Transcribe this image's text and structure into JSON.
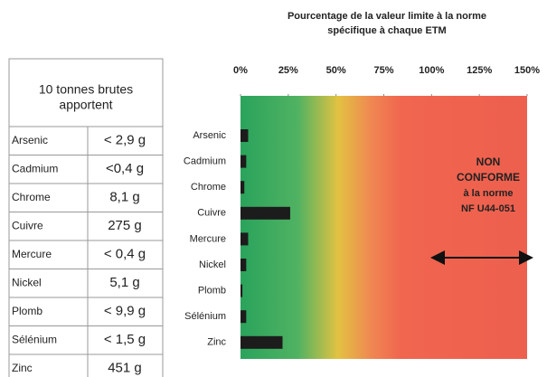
{
  "chart_data": {
    "type": "bar",
    "orientation": "horizontal",
    "title": [
      "Pourcentage de la valeur limite à la norme",
      "spécifique à chaque ETM"
    ],
    "categories": [
      "Arsenic",
      "Cadmium",
      "Chrome",
      "Cuivre",
      "Mercure",
      "Nickel",
      "Plomb",
      "Sélénium",
      "Zinc"
    ],
    "values": [
      4,
      3,
      2,
      26,
      4,
      3,
      1,
      3,
      22
    ],
    "color": "#1c1c1c",
    "xlim": [
      0,
      150
    ],
    "xticks": [
      {
        "value": 0,
        "label": "0%"
      },
      {
        "value": 25,
        "label": "25%"
      },
      {
        "value": 50,
        "label": "50%"
      },
      {
        "value": 75,
        "label": "75%"
      },
      {
        "value": 100,
        "label": "100%"
      },
      {
        "value": 125,
        "label": "125%"
      },
      {
        "value": 150,
        "label": "150%"
      }
    ],
    "annotation": [
      "NON",
      "CONFORME",
      "à la norme",
      "NF U44-051"
    ]
  },
  "table": {
    "header": [
      "10 tonnes brutes",
      "apportent"
    ],
    "rows": [
      [
        "Arsenic",
        "< 2,9 g"
      ],
      [
        "Cadmium",
        "<0,4 g"
      ],
      [
        "Chrome",
        "8,1 g"
      ],
      [
        "Cuivre",
        "275 g"
      ],
      [
        "Mercure",
        "< 0,4 g"
      ],
      [
        "Nickel",
        "5,1 g"
      ],
      [
        "Plomb",
        "< 9,9 g"
      ],
      [
        "Sélénium",
        "< 1,5 g"
      ],
      [
        "Zinc",
        "451 g"
      ]
    ]
  }
}
